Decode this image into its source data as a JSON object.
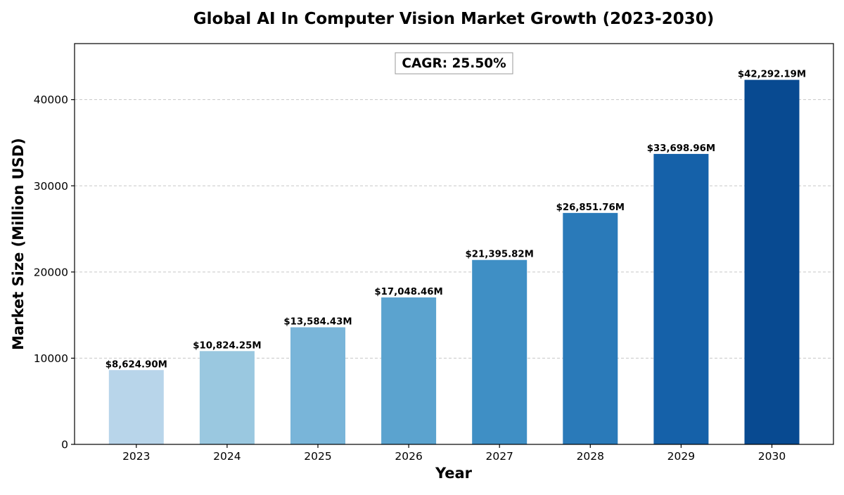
{
  "chart_data": {
    "type": "bar",
    "title": "Global AI In Computer Vision Market Growth (2023-2030)",
    "xlabel": "Year",
    "ylabel": "Market Size (Million USD)",
    "categories": [
      "2023",
      "2024",
      "2025",
      "2026",
      "2027",
      "2028",
      "2029",
      "2030"
    ],
    "values": [
      8624.9,
      10824.25,
      13584.43,
      17048.46,
      21395.82,
      26851.76,
      33698.96,
      42292.19
    ],
    "data_labels": [
      "$8,624.90M",
      "$10,824.25M",
      "$13,584.43M",
      "$17,048.46M",
      "$21,395.82M",
      "$26,851.76M",
      "$33,698.96M",
      "$42,292.19M"
    ],
    "bar_colors": [
      "#b8d5ea",
      "#9ac8e0",
      "#79b5d9",
      "#5ba3cf",
      "#3f8fc5",
      "#2a7ab9",
      "#1561a9",
      "#084a91"
    ],
    "ylim": [
      0,
      46500
    ],
    "yticks": [
      0,
      10000,
      20000,
      30000,
      40000
    ],
    "grid": "horizontal-dashed",
    "annotation": "CAGR: 25.50%"
  }
}
